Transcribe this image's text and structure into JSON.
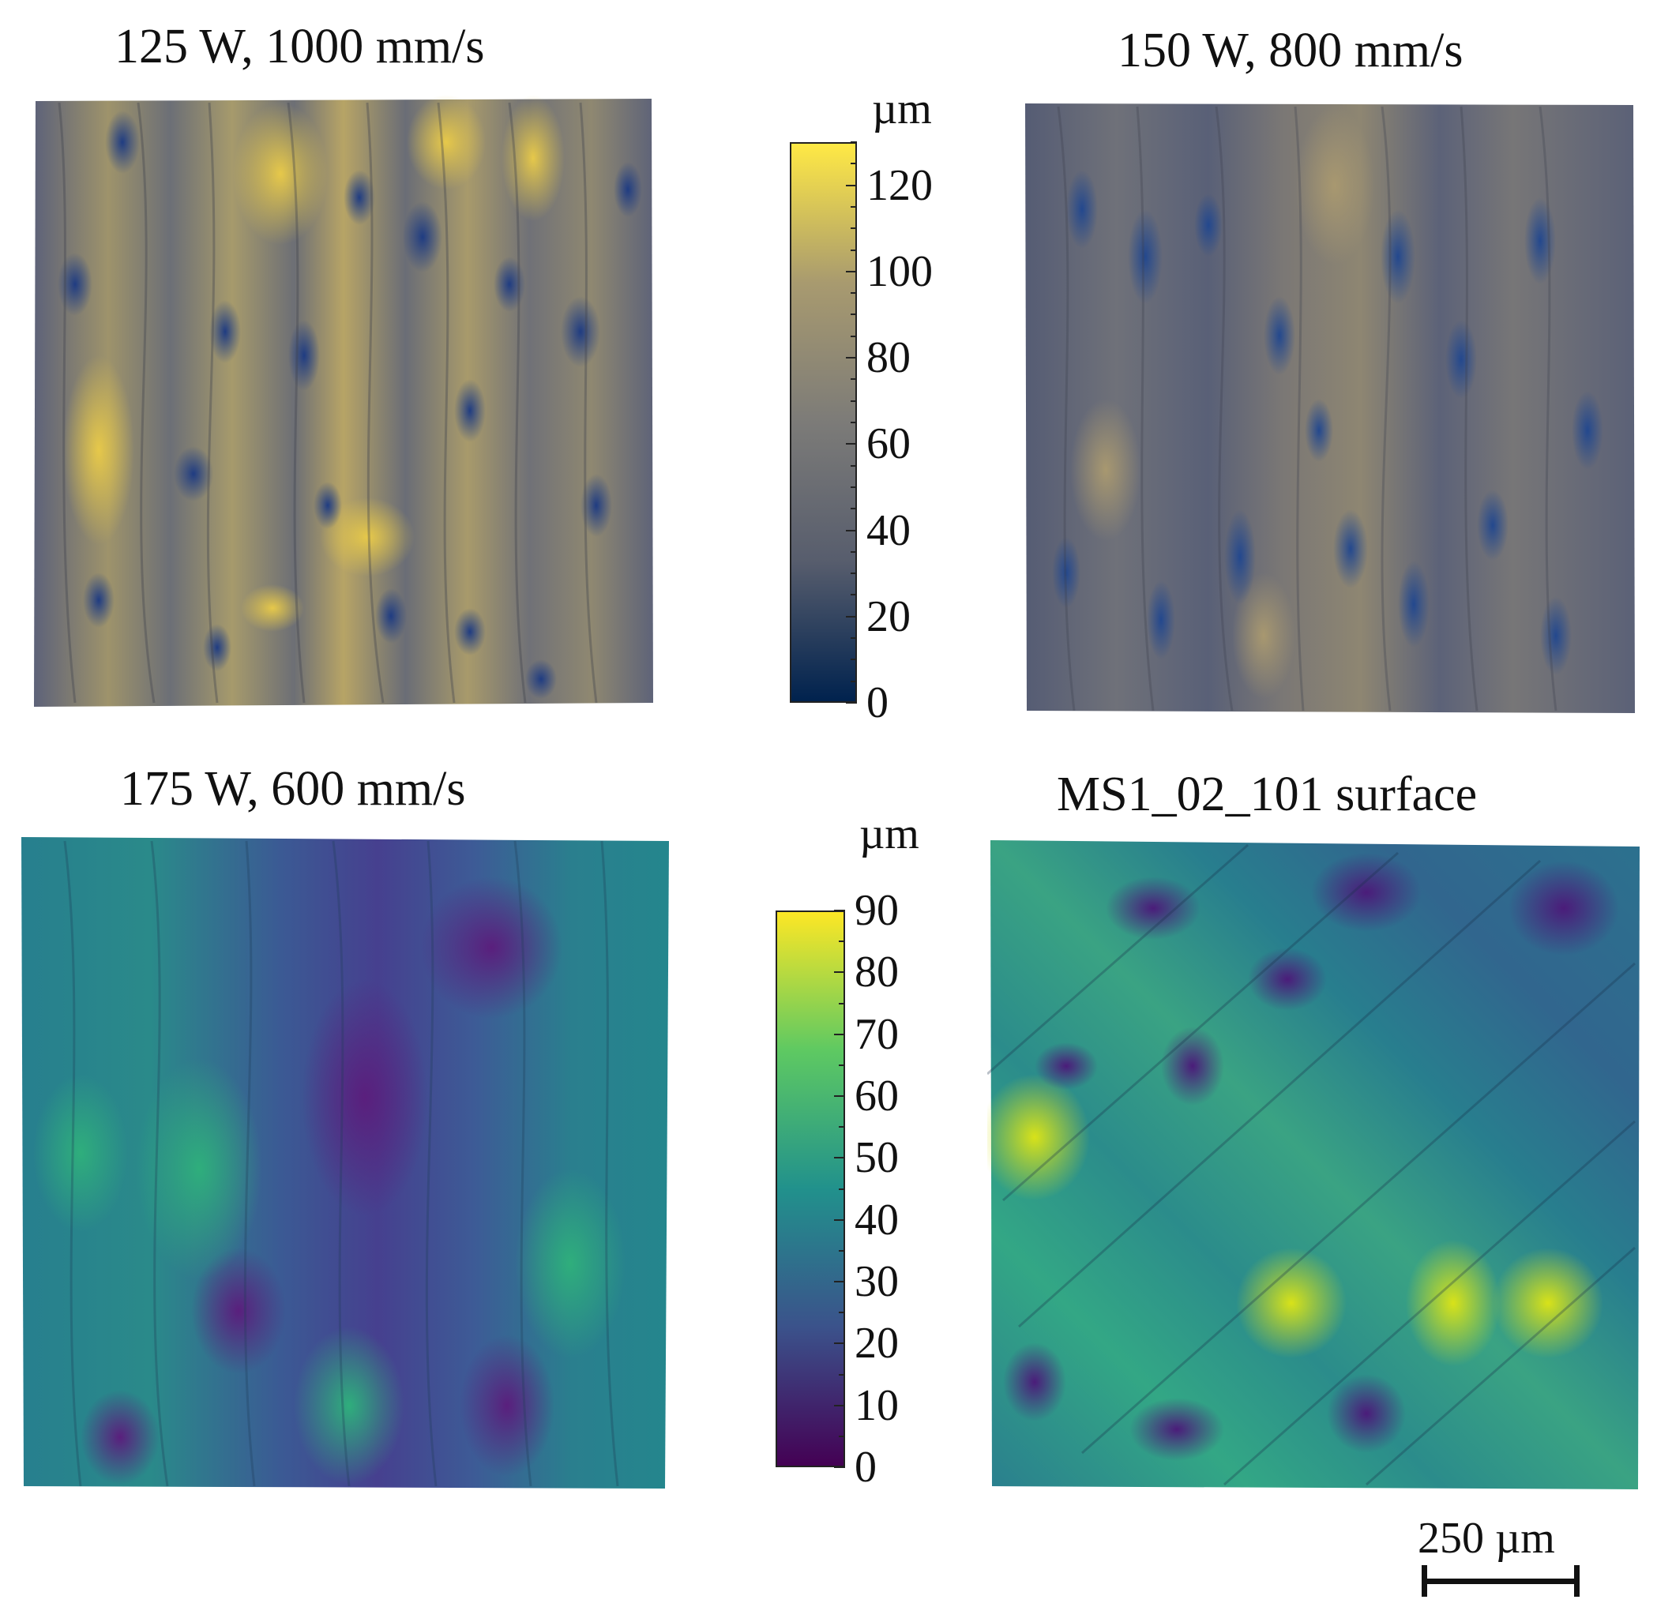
{
  "figure": {
    "panels": [
      {
        "title": "125 W, 1000 mm/s",
        "colormap": "cividis"
      },
      {
        "title": "150 W, 800 mm/s",
        "colormap": "cividis"
      },
      {
        "title": "175 W, 600 mm/s",
        "colormap": "viridis"
      },
      {
        "title": "MS1_02_101 surface",
        "colormap": "viridis"
      }
    ],
    "colorbar_top": {
      "unit": "µm",
      "ticks": [
        "120",
        "100",
        "80",
        "60",
        "40",
        "20",
        "0"
      ],
      "range": [
        0,
        130
      ],
      "colors": [
        "#ffe945",
        "#a89a6f",
        "#7c7b78",
        "#575d6d",
        "#00224e"
      ]
    },
    "colorbar_bottom": {
      "unit": "µm",
      "ticks": [
        "90",
        "80",
        "70",
        "60",
        "50",
        "40",
        "30",
        "20",
        "10",
        "0"
      ],
      "range": [
        0,
        90
      ],
      "colors": [
        "#fde725",
        "#5ec962",
        "#21918c",
        "#3b528b",
        "#440154"
      ]
    },
    "scale_bar": {
      "label": "250 µm",
      "length_um": 250
    }
  }
}
